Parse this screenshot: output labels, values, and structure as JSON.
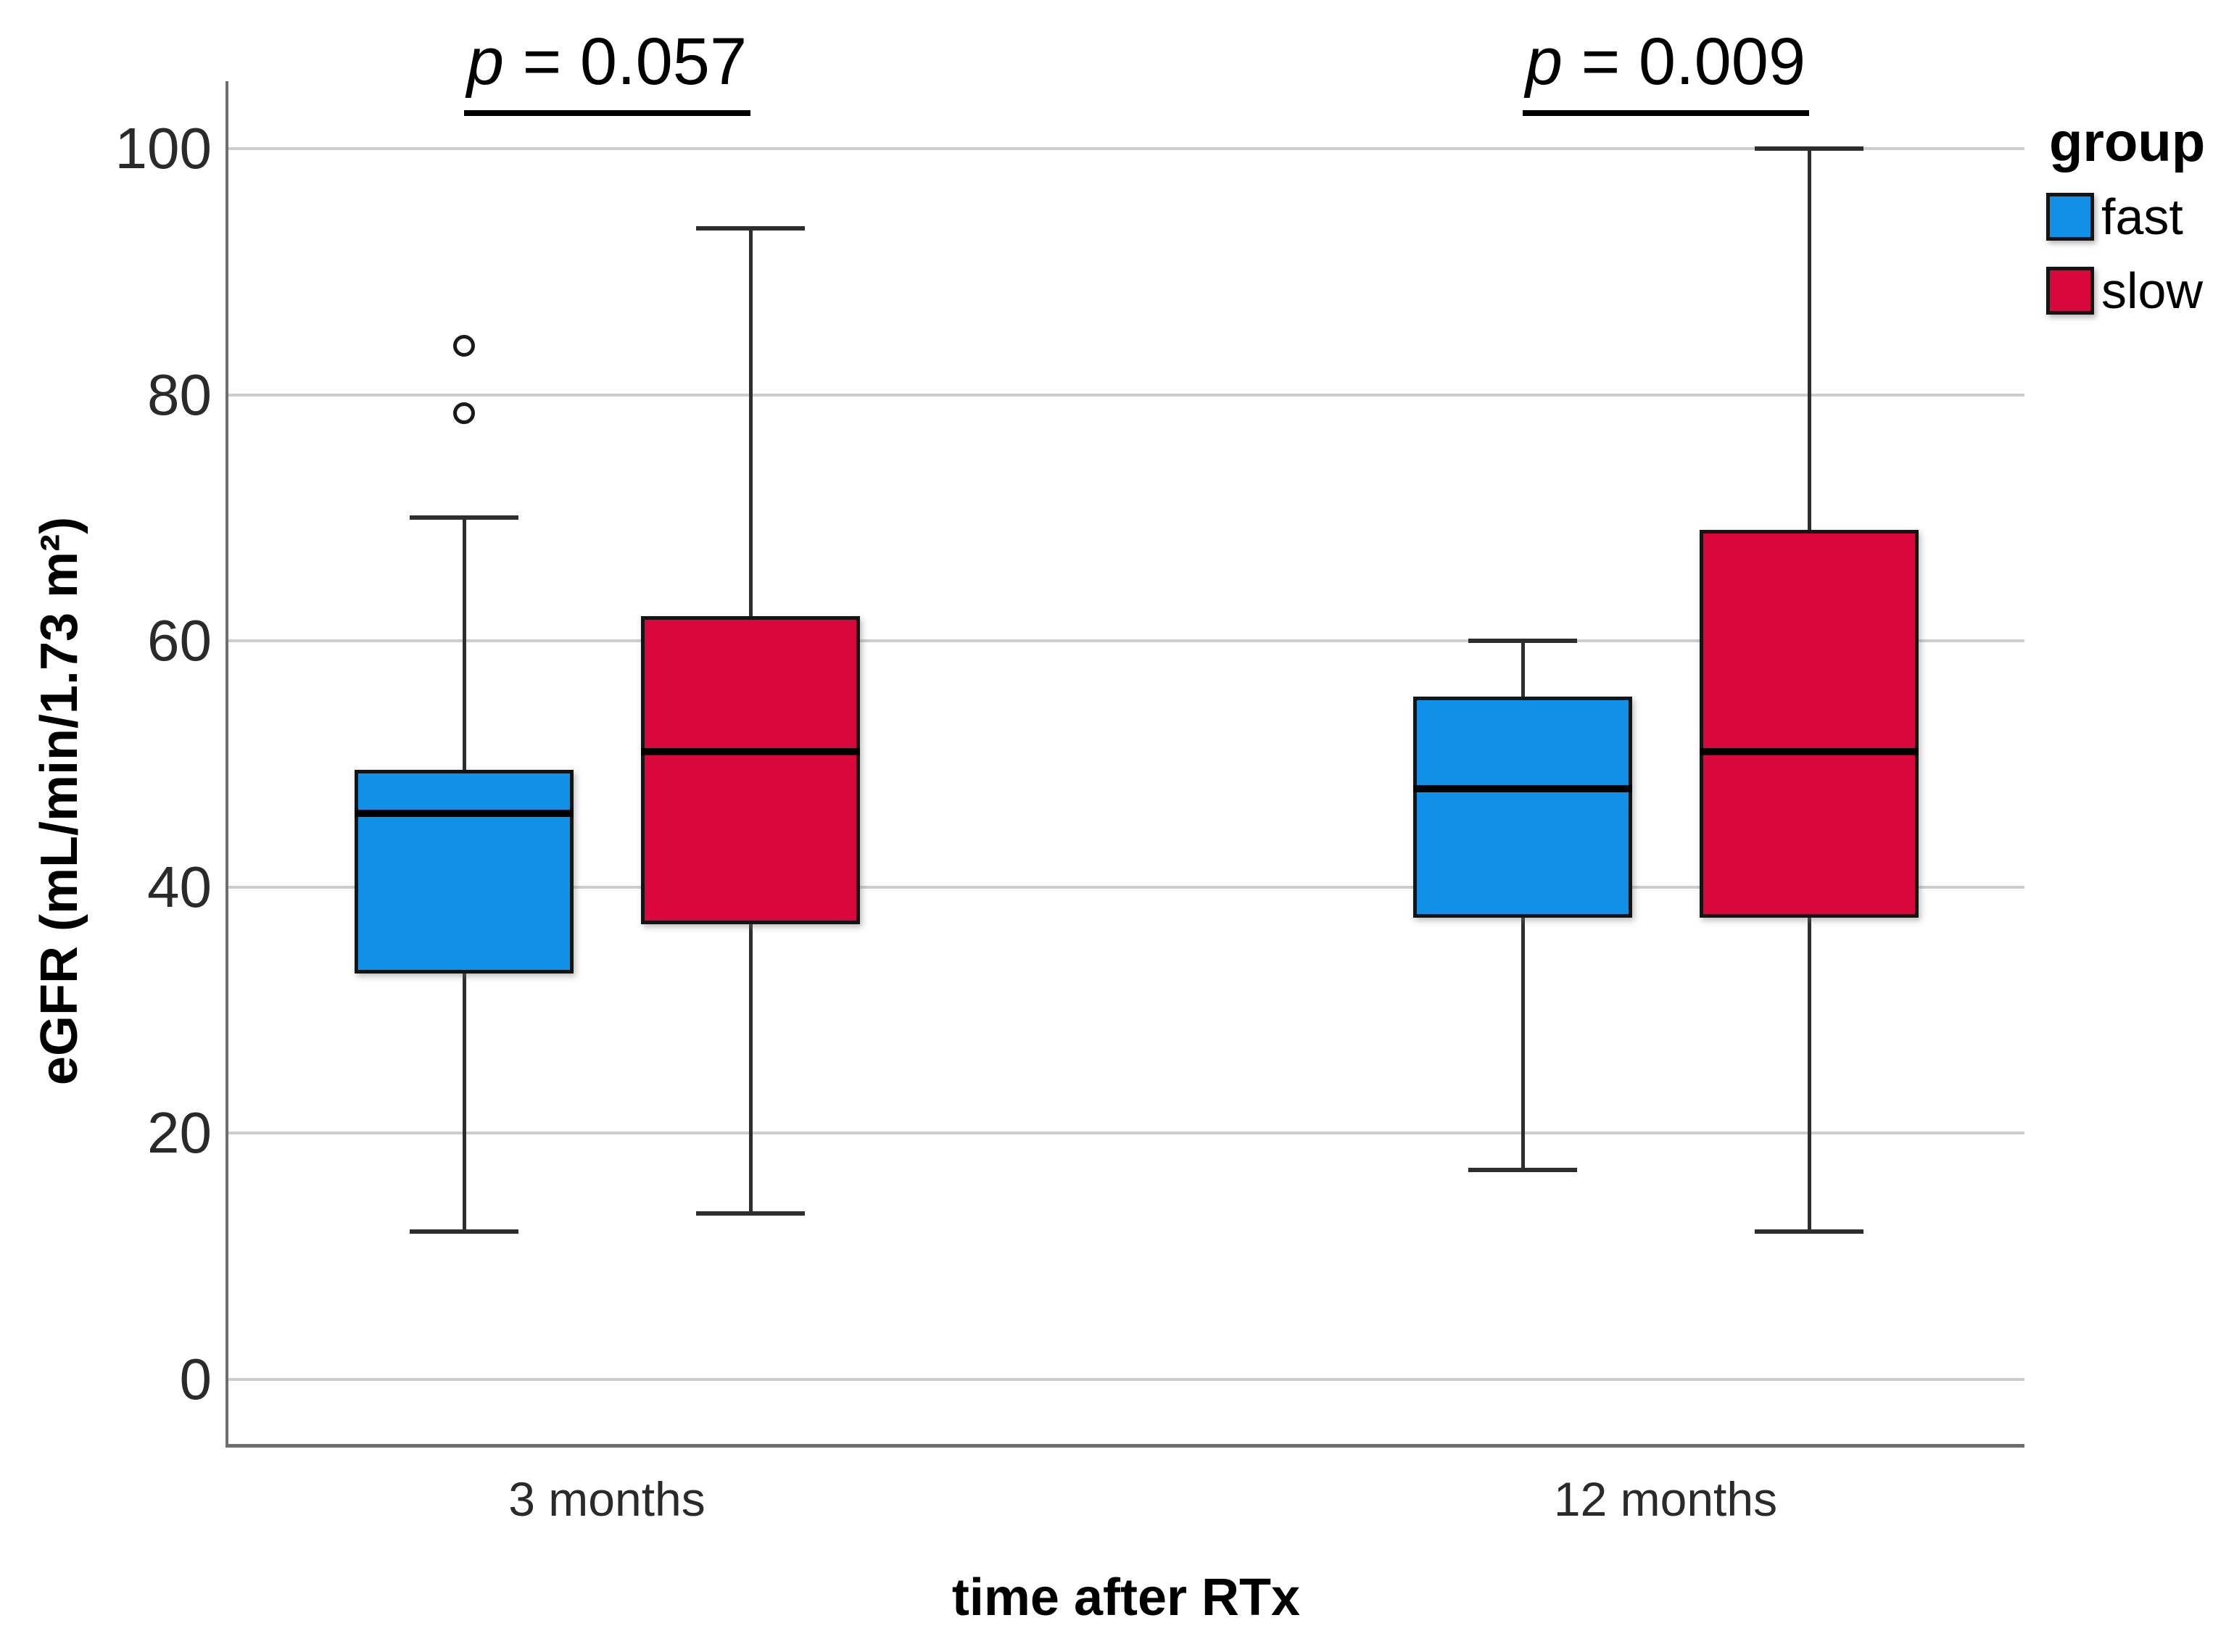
{
  "chart_data": {
    "type": "boxplot",
    "title": "",
    "xlabel": "time after RTx",
    "ylabel": "eGFR (mL/min/1.73 m²)",
    "categories": [
      "3 months",
      "12 months"
    ],
    "yticks": [
      0,
      20,
      40,
      60,
      80,
      100
    ],
    "ylim": [
      -5,
      105
    ],
    "grid": true,
    "legend": {
      "title": "group",
      "position": "top-right",
      "entries": [
        {
          "label": "fast",
          "color": "#1190E8"
        },
        {
          "label": "slow",
          "color": "#D9083C"
        }
      ]
    },
    "series": [
      {
        "name": "fast",
        "color": "#1190E8",
        "boxes": [
          {
            "category": "3 months",
            "whisker_low": 12,
            "q1": 33,
            "median": 46,
            "q3": 49.5,
            "whisker_high": 70,
            "outliers": [
              78.5,
              84
            ]
          },
          {
            "category": "12 months",
            "whisker_low": 17,
            "q1": 37.5,
            "median": 48,
            "q3": 55.5,
            "whisker_high": 60,
            "outliers": []
          }
        ]
      },
      {
        "name": "slow",
        "color": "#D9083C",
        "boxes": [
          {
            "category": "3 months",
            "whisker_low": 13.5,
            "q1": 37,
            "median": 51,
            "q3": 62,
            "whisker_high": 93.5,
            "outliers": []
          },
          {
            "category": "12 months",
            "whisker_low": 12,
            "q1": 37.5,
            "median": 51,
            "q3": 69,
            "whisker_high": 100,
            "outliers": []
          }
        ]
      }
    ],
    "annotations": [
      {
        "prefix": "p",
        "text": " = 0.057",
        "category": "3 months"
      },
      {
        "prefix": "p",
        "text": " = 0.009",
        "category": "12 months"
      }
    ]
  },
  "colors": {
    "fast_fill": "#1190E8",
    "slow_fill": "#D9083C",
    "gridline": "#cdcdcd",
    "axis": "#6e6e6e",
    "box_border": "#141414",
    "median": "#000000",
    "text": "#2a2a2a"
  }
}
